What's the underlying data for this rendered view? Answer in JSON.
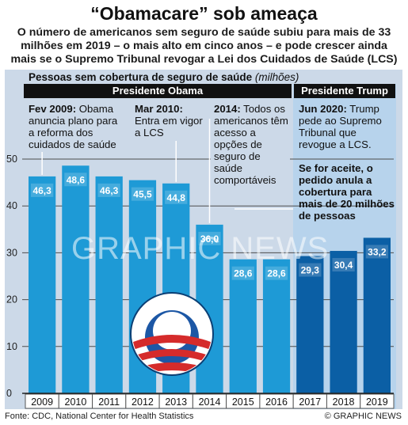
{
  "header": {
    "title": "“Obamacare” sob ameaça",
    "subtitle": "O número de americanos sem seguro de saúde subiu para mais de 33 milhões em 2019 – o mais alto em cinco anos – e pode crescer ainda mais se o Supremo Tribunal revogar a Lei dos Cuidados de Saúde (LCS)"
  },
  "chart_header": {
    "label": "Pessoas sem cobertura de seguro de saúde",
    "unit": "(milhões)"
  },
  "presidencies": {
    "obama": "Presidente Obama",
    "trump": "Presidente Trump"
  },
  "annotations": {
    "a2009": {
      "date": "Fev 2009:",
      "text": "Obama anuncia plano para a reforma dos cuidados de saúde"
    },
    "a2010": {
      "date": "Mar 2010:",
      "text": "Entra em vigor a LCS"
    },
    "a2014": {
      "date": "2014:",
      "text": "Todos os americanos têm acesso a opções de seguro de saúde comportáveis"
    },
    "a2020": {
      "date": "Jun 2020:",
      "text": "Trump pede ao Supremo Tribunal que revogue a LCS."
    },
    "a2020b": "Se for aceite, o pedido anula a cobertura para mais de 20 milhões de pessoas"
  },
  "chart_data": {
    "type": "bar",
    "categories": [
      "2009",
      "2010",
      "2011",
      "2012",
      "2013",
      "2014",
      "2015",
      "2016",
      "2017",
      "2018",
      "2019"
    ],
    "values": [
      46.3,
      48.6,
      46.3,
      45.5,
      44.8,
      36.0,
      28.6,
      28.6,
      29.3,
      30.4,
      33.2
    ],
    "value_labels": [
      "46,3",
      "48,6",
      "46,3",
      "45,5",
      "44,8",
      "36,0",
      "28,6",
      "28,6",
      "29,3",
      "30,4",
      "33,2"
    ],
    "yticks": [
      "0",
      "10",
      "20",
      "30",
      "40",
      "50"
    ],
    "ylim": [
      0,
      50
    ],
    "title": "Pessoas sem cobertura de seguro de saúde",
    "ylabel": "(milhões)",
    "grid": true,
    "colors": {
      "obama": "#1e9ad6",
      "trump": "#0b5fa5"
    },
    "trump_from": "2017"
  },
  "watermark": "GRAPHIC NEWS",
  "footer": {
    "source": "Fonte: CDC, National Center for Health Statistics",
    "credit": "© GRAPHIC NEWS"
  }
}
